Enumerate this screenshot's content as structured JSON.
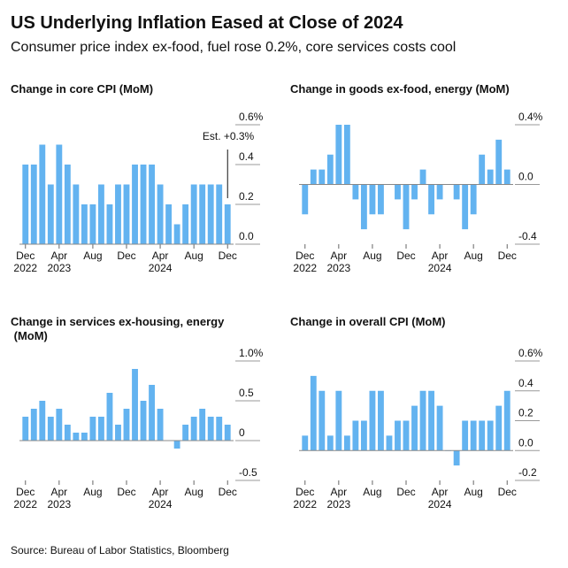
{
  "title": "US Underlying Inflation Eased at Close of 2024",
  "subtitle": "Consumer price index ex-food, fuel rose 0.2%, core services costs cool",
  "source": "Source: Bureau of Labor Statistics, Bloomberg",
  "chart_data": [
    {
      "type": "bar",
      "title": "Change in core CPI (MoM)",
      "categories": [
        "Dec",
        null,
        null,
        null,
        "Apr",
        null,
        null,
        null,
        "Aug",
        null,
        null,
        null,
        "Dec",
        null,
        null,
        null,
        "Apr",
        null,
        null,
        null,
        "Aug",
        null,
        null,
        null,
        "Dec"
      ],
      "year_labels": [
        "2022",
        null,
        null,
        null,
        "2023",
        null,
        null,
        null,
        null,
        null,
        null,
        null,
        null,
        null,
        null,
        null,
        "2024",
        null,
        null,
        null,
        null,
        null,
        null,
        null,
        null
      ],
      "values": [
        0.4,
        0.4,
        0.5,
        0.3,
        0.5,
        0.4,
        0.3,
        0.2,
        0.2,
        0.3,
        0.2,
        0.3,
        0.3,
        0.4,
        0.4,
        0.4,
        0.3,
        0.2,
        0.1,
        0.2,
        0.3,
        0.3,
        0.3,
        0.3,
        0.2
      ],
      "color": "#63b3f0",
      "ylim": [
        0,
        0.6
      ],
      "yticks": [
        {
          "value": 0,
          "label": "0.0"
        },
        0.2,
        0.4,
        {
          "value": 0.6,
          "label": "0.6%"
        }
      ],
      "annotation": "Est. +0.3%"
    },
    {
      "type": "bar",
      "title": "Change in goods ex-food, energy (MoM)",
      "categories": [
        "Dec",
        null,
        null,
        null,
        "Apr",
        null,
        null,
        null,
        "Aug",
        null,
        null,
        null,
        "Dec",
        null,
        null,
        null,
        "Apr",
        null,
        null,
        null,
        "Aug",
        null,
        null,
        null,
        "Dec"
      ],
      "year_labels": [
        "2022",
        null,
        null,
        null,
        "2023",
        null,
        null,
        null,
        null,
        null,
        null,
        null,
        null,
        null,
        null,
        null,
        "2024",
        null,
        null,
        null,
        null,
        null,
        null,
        null,
        null
      ],
      "values": [
        -0.2,
        0.1,
        0.1,
        0.2,
        0.4,
        0.4,
        -0.1,
        -0.3,
        -0.2,
        -0.2,
        0.0,
        -0.1,
        -0.3,
        -0.1,
        0.1,
        -0.2,
        -0.1,
        0.0,
        -0.1,
        -0.3,
        -0.2,
        0.2,
        0.1,
        0.3,
        0.1
      ],
      "color": "#63b3f0",
      "ylim": [
        -0.4,
        0.4
      ],
      "yticks": [
        -0.4,
        {
          "value": 0,
          "label": "0.0"
        },
        {
          "value": 0.4,
          "label": "0.4%"
        }
      ]
    },
    {
      "type": "bar",
      "title": "Change in services ex-housing, energy (MoM)",
      "categories": [
        "Dec",
        null,
        null,
        null,
        "Apr",
        null,
        null,
        null,
        "Aug",
        null,
        null,
        null,
        "Dec",
        null,
        null,
        null,
        "Apr",
        null,
        null,
        null,
        "Aug",
        null,
        null,
        null,
        "Dec"
      ],
      "year_labels": [
        "2022",
        null,
        null,
        null,
        "2023",
        null,
        null,
        null,
        null,
        null,
        null,
        null,
        null,
        null,
        null,
        null,
        "2024",
        null,
        null,
        null,
        null,
        null,
        null,
        null,
        null
      ],
      "values": [
        0.3,
        0.4,
        0.5,
        0.3,
        0.4,
        0.2,
        0.1,
        0.1,
        0.3,
        0.3,
        0.6,
        0.2,
        0.4,
        0.9,
        0.5,
        0.7,
        0.4,
        0.0,
        -0.1,
        0.2,
        0.3,
        0.4,
        0.3,
        0.3,
        0.2
      ],
      "color": "#63b3f0",
      "ylim": [
        -0.5,
        1.0
      ],
      "yticks": [
        -0.5,
        0,
        0.5,
        {
          "value": 1.0,
          "label": "1.0%"
        }
      ]
    },
    {
      "type": "bar",
      "title": "Change in overall CPI (MoM)",
      "categories": [
        "Dec",
        null,
        null,
        null,
        "Apr",
        null,
        null,
        null,
        "Aug",
        null,
        null,
        null,
        "Dec",
        null,
        null,
        null,
        "Apr",
        null,
        null,
        null,
        "Aug",
        null,
        null,
        null,
        "Dec"
      ],
      "year_labels": [
        "2022",
        null,
        null,
        null,
        "2023",
        null,
        null,
        null,
        null,
        null,
        null,
        null,
        null,
        null,
        null,
        null,
        "2024",
        null,
        null,
        null,
        null,
        null,
        null,
        null,
        null
      ],
      "values": [
        0.1,
        0.5,
        0.4,
        0.1,
        0.4,
        0.1,
        0.2,
        0.2,
        0.4,
        0.4,
        0.1,
        0.2,
        0.2,
        0.3,
        0.4,
        0.4,
        0.3,
        0.0,
        -0.1,
        0.2,
        0.2,
        0.2,
        0.2,
        0.3,
        0.4
      ],
      "color": "#63b3f0",
      "ylim": [
        -0.2,
        0.6
      ],
      "yticks": [
        -0.2,
        {
          "value": 0,
          "label": "0.0"
        },
        0.2,
        0.4,
        {
          "value": 0.6,
          "label": "0.6%"
        }
      ]
    }
  ]
}
